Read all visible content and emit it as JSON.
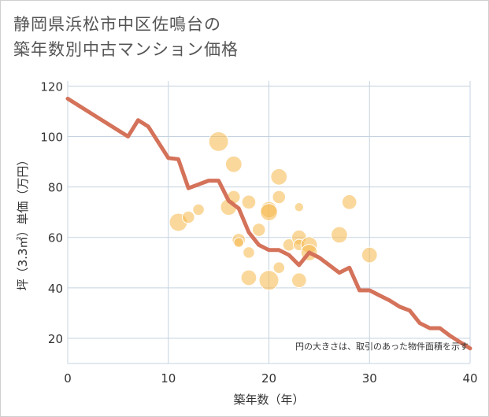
{
  "title_line1": "静岡県浜松市中区佐鳴台の",
  "title_line2": "築年数別中古マンション価格",
  "colors": {
    "line": "#d4725a",
    "bubble": "#f5b84a",
    "grid": "#c5d3e0",
    "plot_bg": "#ffffff"
  },
  "chart_data": {
    "type": "scatter",
    "xlabel": "築年数（年）",
    "ylabel": "坪（3.3㎡）単価（万円）",
    "xlim": [
      0,
      40
    ],
    "ylim": [
      10,
      122
    ],
    "xticks": [
      0,
      10,
      20,
      30,
      40
    ],
    "yticks": [
      20,
      40,
      60,
      80,
      100,
      120
    ],
    "note": "円の大きさは、取引のあった物件面積を示す",
    "trend_line": {
      "x": [
        0,
        6,
        7,
        8,
        10,
        11,
        12,
        14,
        15,
        16,
        17,
        18,
        19,
        20,
        21,
        22,
        23,
        24,
        25,
        26,
        27,
        28,
        29,
        30,
        31,
        32,
        33,
        34,
        35,
        36,
        37,
        38,
        39,
        40
      ],
      "y": [
        115,
        100,
        106.5,
        104,
        91.5,
        91,
        79.5,
        82.5,
        82.5,
        74.5,
        71.5,
        62,
        57,
        55,
        55,
        53,
        49,
        54,
        52,
        49,
        46,
        48,
        39,
        39,
        37,
        35,
        32.5,
        31,
        26,
        24,
        24,
        21,
        18.5,
        16
      ]
    },
    "points": [
      {
        "x": 11,
        "y": 66,
        "size": 2.2
      },
      {
        "x": 12,
        "y": 68,
        "size": 1.5
      },
      {
        "x": 13,
        "y": 71,
        "size": 1.4
      },
      {
        "x": 15,
        "y": 98,
        "size": 2.4
      },
      {
        "x": 16,
        "y": 72,
        "size": 2.0
      },
      {
        "x": 16.5,
        "y": 89,
        "size": 2.0
      },
      {
        "x": 16.5,
        "y": 76,
        "size": 1.6
      },
      {
        "x": 17,
        "y": 59,
        "size": 1.6
      },
      {
        "x": 17,
        "y": 58,
        "size": 1.2
      },
      {
        "x": 18,
        "y": 74,
        "size": 1.7
      },
      {
        "x": 18,
        "y": 54,
        "size": 1.4
      },
      {
        "x": 18,
        "y": 44,
        "size": 1.9
      },
      {
        "x": 19,
        "y": 63,
        "size": 1.6
      },
      {
        "x": 20,
        "y": 71,
        "size": 2.0
      },
      {
        "x": 20,
        "y": 70,
        "size": 2.1
      },
      {
        "x": 20,
        "y": 43,
        "size": 2.4
      },
      {
        "x": 21,
        "y": 84,
        "size": 2.0
      },
      {
        "x": 21,
        "y": 76,
        "size": 1.6
      },
      {
        "x": 21,
        "y": 48,
        "size": 1.4
      },
      {
        "x": 22,
        "y": 57,
        "size": 1.5
      },
      {
        "x": 23,
        "y": 72,
        "size": 1.1
      },
      {
        "x": 23,
        "y": 60,
        "size": 1.8
      },
      {
        "x": 23,
        "y": 57,
        "size": 1.4
      },
      {
        "x": 23,
        "y": 43,
        "size": 1.8
      },
      {
        "x": 24,
        "y": 57,
        "size": 2.0
      },
      {
        "x": 24,
        "y": 54,
        "size": 2.0
      },
      {
        "x": 27,
        "y": 61,
        "size": 2.0
      },
      {
        "x": 28,
        "y": 74,
        "size": 1.8
      },
      {
        "x": 30,
        "y": 53,
        "size": 1.9
      }
    ]
  }
}
